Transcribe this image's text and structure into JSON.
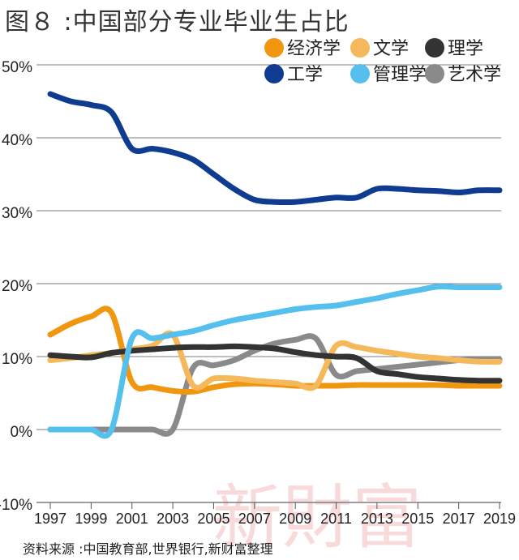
{
  "header": {
    "title": "图８ :中国部分专业毕业生占比"
  },
  "footer": {
    "source": "资料来源 :中国教育部,世界银行,新财富整理"
  },
  "watermark": {
    "text": "新財富"
  },
  "chart_data": {
    "type": "line",
    "title": "图８ :中国部分专业毕业生占比",
    "xlabel": "",
    "ylabel": "",
    "x": [
      1997,
      1998,
      1999,
      2000,
      2001,
      2002,
      2003,
      2004,
      2005,
      2006,
      2007,
      2008,
      2009,
      2010,
      2011,
      2012,
      2013,
      2014,
      2015,
      2016,
      2017,
      2018,
      2019
    ],
    "x_ticks": [
      "1997",
      "1999",
      "2001",
      "2003",
      "2005",
      "2007",
      "2009",
      "2011",
      "2013",
      "2015",
      "2017",
      "2019"
    ],
    "y_ticks": [
      "-10%",
      "0%",
      "10%",
      "20%",
      "30%",
      "40%",
      "50%"
    ],
    "ylim": [
      -10,
      50
    ],
    "grid": "horizontal",
    "legend_position": "top-right",
    "series": [
      {
        "name": "经济学",
        "color": "#f0960f",
        "values": [
          13,
          14.5,
          15.5,
          16,
          6.5,
          5.8,
          5.3,
          5.2,
          5.8,
          6.2,
          6.3,
          6.2,
          6.0,
          6.0,
          6.0,
          6.1,
          6.1,
          6.1,
          6.1,
          6.1,
          6.0,
          6.0,
          6.0
        ]
      },
      {
        "name": "文学",
        "color": "#f5b85a",
        "values": [
          9.5,
          9.8,
          10.2,
          10.5,
          11,
          11.5,
          13,
          6.0,
          7.0,
          7.0,
          6.7,
          6.5,
          6.3,
          6.0,
          11.5,
          11.3,
          10.8,
          10.4,
          10.0,
          9.8,
          9.5,
          9.3,
          9.3
        ]
      },
      {
        "name": "理学",
        "color": "#333333",
        "values": [
          10.2,
          10.0,
          9.9,
          10.5,
          10.8,
          11.0,
          11.2,
          11.3,
          11.3,
          11.4,
          11.3,
          11.1,
          10.6,
          10.2,
          10.0,
          9.8,
          8.0,
          7.6,
          7.2,
          7.0,
          6.8,
          6.7,
          6.7
        ]
      },
      {
        "name": "工学",
        "color": "#0f3c91",
        "values": [
          46,
          45,
          44.5,
          43.5,
          38.5,
          38.5,
          38,
          37,
          35,
          33,
          31.5,
          31.2,
          31.2,
          31.5,
          31.8,
          31.8,
          33,
          33,
          32.8,
          32.7,
          32.5,
          32.8,
          32.8
        ]
      },
      {
        "name": "管理学",
        "color": "#55c0ee",
        "values": [
          0,
          0,
          0,
          0,
          12.5,
          12.5,
          13.0,
          13.5,
          14.3,
          15.0,
          15.5,
          16.0,
          16.5,
          16.8,
          17.0,
          17.5,
          18.0,
          18.6,
          19.1,
          19.6,
          19.5,
          19.5,
          19.5
        ]
      },
      {
        "name": "艺术学",
        "color": "#8a8a8a",
        "values": [
          0,
          0,
          0,
          0,
          0,
          0,
          0,
          8.5,
          8.8,
          9.5,
          10.8,
          11.8,
          12.3,
          12.5,
          7.5,
          8.0,
          8.3,
          8.6,
          8.9,
          9.2,
          9.5,
          9.6,
          9.6
        ]
      }
    ]
  }
}
